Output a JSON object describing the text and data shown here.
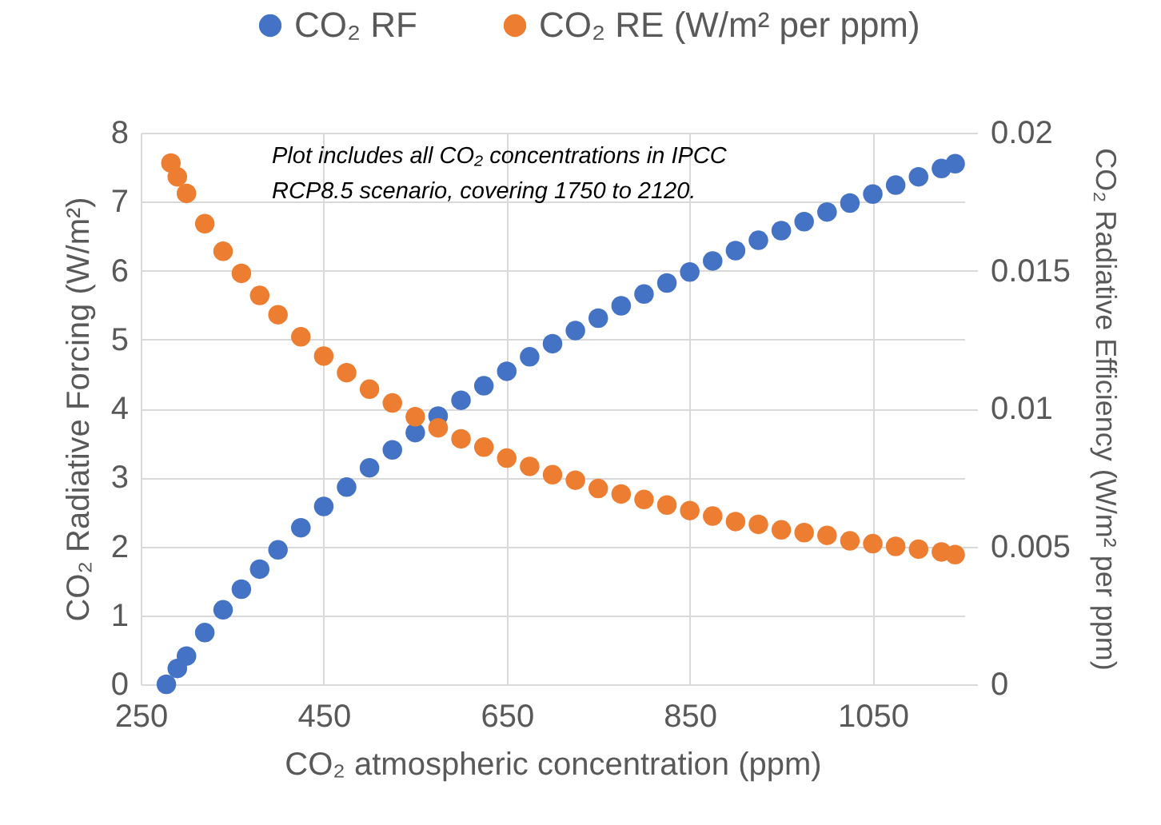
{
  "chart_data": {
    "type": "scatter",
    "xlabel": "CO₂ atmospheric concentration (ppm)",
    "ylabel": "CO₂ Radiative Forcing (W/m²)",
    "y2label": "CO₂ Radiative Efficiency (W/m² per ppm)",
    "annotations": [
      "Plot includes all CO₂ concentrations in IPCC RCP8.5 scenario, covering 1750 to 2120."
    ],
    "xlim": [
      250,
      1150
    ],
    "xticks": [
      250,
      450,
      650,
      850,
      1050
    ],
    "ylim": [
      0,
      8
    ],
    "yticks": [
      0,
      1,
      2,
      3,
      4,
      5,
      6,
      7,
      8
    ],
    "y2lim": [
      0,
      0.02
    ],
    "y2ticks": [
      0,
      0.005,
      0.01,
      0.015,
      0.02
    ],
    "grid": true,
    "legend": "top",
    "marker": "circle",
    "series": [
      {
        "name": "CO₂ RF",
        "color": "#4472c4",
        "x": [
          278,
          290,
          300,
          320,
          340,
          360,
          380,
          400,
          425,
          450,
          475,
          500,
          525,
          550,
          575,
          600,
          625,
          650,
          675,
          700,
          725,
          750,
          775,
          800,
          825,
          850,
          875,
          900,
          925,
          950,
          975,
          1000,
          1025,
          1050,
          1075,
          1100,
          1125,
          1140
        ],
        "values": [
          0,
          0.23,
          0.41,
          0.75,
          1.08,
          1.38,
          1.67,
          1.95,
          2.27,
          2.58,
          2.86,
          3.14,
          3.4,
          3.65,
          3.89,
          4.12,
          4.33,
          4.54,
          4.75,
          4.94,
          5.13,
          5.31,
          5.49,
          5.66,
          5.82,
          5.98,
          6.14,
          6.29,
          6.44,
          6.58,
          6.71,
          6.85,
          6.98,
          7.11,
          7.24,
          7.36,
          7.48,
          7.55
        ]
      },
      {
        "name": "CO₂ RE (W/m² per ppm)",
        "color": "#ed7d31",
        "axis": "y2",
        "x": [
          283,
          290,
          300,
          320,
          340,
          360,
          380,
          400,
          425,
          450,
          475,
          500,
          525,
          550,
          575,
          600,
          625,
          650,
          675,
          700,
          725,
          750,
          775,
          800,
          825,
          850,
          875,
          900,
          925,
          950,
          975,
          1000,
          1025,
          1050,
          1075,
          1100,
          1125,
          1140
        ],
        "values": [
          0.0189,
          0.0184,
          0.0178,
          0.0167,
          0.0157,
          0.0149,
          0.0141,
          0.0134,
          0.0126,
          0.0119,
          0.0113,
          0.0107,
          0.0102,
          0.0097,
          0.0093,
          0.0089,
          0.0086,
          0.0082,
          0.0079,
          0.0076,
          0.0074,
          0.0071,
          0.0069,
          0.0067,
          0.0065,
          0.0063,
          0.0061,
          0.0059,
          0.0058,
          0.0056,
          0.0055,
          0.0054,
          0.0052,
          0.0051,
          0.005,
          0.0049,
          0.0048,
          0.0047
        ]
      }
    ]
  }
}
